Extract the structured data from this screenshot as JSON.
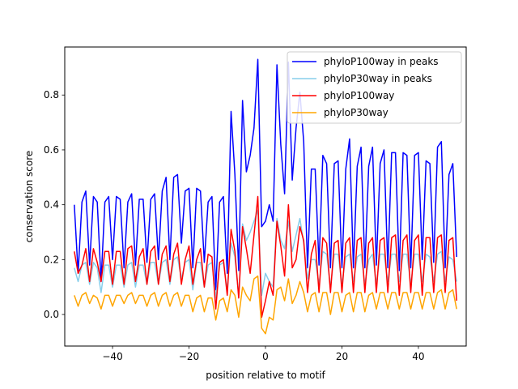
{
  "chart_data": {
    "type": "line",
    "title": "",
    "xlabel": "position relative to motif",
    "ylabel": "conservation score",
    "xlim": [
      -52.5,
      52.5
    ],
    "ylim": [
      -0.115,
      0.975
    ],
    "xticks": [
      -40,
      -20,
      0,
      20,
      40
    ],
    "yticks": [
      0.0,
      0.2,
      0.4,
      0.6,
      0.8
    ],
    "xtick_labels": [
      "−40",
      "−20",
      "0",
      "20",
      "40"
    ],
    "ytick_labels": [
      "0.0",
      "0.2",
      "0.4",
      "0.6",
      "0.8"
    ],
    "grid": false,
    "legend_position": "top-right",
    "x": [
      -50,
      -49,
      -48,
      -47,
      -46,
      -45,
      -44,
      -43,
      -42,
      -41,
      -40,
      -39,
      -38,
      -37,
      -36,
      -35,
      -34,
      -33,
      -32,
      -31,
      -30,
      -29,
      -28,
      -27,
      -26,
      -25,
      -24,
      -23,
      -22,
      -21,
      -20,
      -19,
      -18,
      -17,
      -16,
      -15,
      -14,
      -13,
      -12,
      -11,
      -10,
      -9,
      -8,
      -7,
      -6,
      -5,
      -4,
      -3,
      -2,
      -1,
      0,
      1,
      2,
      3,
      4,
      5,
      6,
      7,
      8,
      9,
      10,
      11,
      12,
      13,
      14,
      15,
      16,
      17,
      18,
      19,
      20,
      21,
      22,
      23,
      24,
      25,
      26,
      27,
      28,
      29,
      30,
      31,
      32,
      33,
      34,
      35,
      36,
      37,
      38,
      39,
      40,
      41,
      42,
      43,
      44,
      45,
      46,
      47,
      48,
      49,
      50
    ],
    "series": [
      {
        "name": "phyloP100way in peaks",
        "color": "#0000ff",
        "values": [
          0.4,
          0.15,
          0.41,
          0.45,
          0.18,
          0.43,
          0.41,
          0.12,
          0.41,
          0.43,
          0.2,
          0.43,
          0.42,
          0.17,
          0.41,
          0.44,
          0.18,
          0.42,
          0.42,
          0.19,
          0.42,
          0.44,
          0.2,
          0.45,
          0.5,
          0.2,
          0.5,
          0.51,
          0.26,
          0.45,
          0.46,
          0.17,
          0.46,
          0.45,
          0.19,
          0.41,
          0.43,
          0.09,
          0.41,
          0.43,
          0.15,
          0.74,
          0.51,
          0.16,
          0.78,
          0.52,
          0.58,
          0.68,
          0.93,
          0.32,
          0.34,
          0.4,
          0.34,
          0.91,
          0.62,
          0.44,
          0.92,
          0.49,
          0.68,
          0.81,
          0.63,
          0.17,
          0.53,
          0.53,
          0.18,
          0.58,
          0.55,
          0.17,
          0.55,
          0.56,
          0.17,
          0.53,
          0.64,
          0.17,
          0.54,
          0.61,
          0.17,
          0.54,
          0.61,
          0.18,
          0.55,
          0.6,
          0.17,
          0.59,
          0.59,
          0.16,
          0.59,
          0.58,
          0.17,
          0.58,
          0.59,
          0.2,
          0.56,
          0.55,
          0.19,
          0.61,
          0.63,
          0.17,
          0.51,
          0.55,
          0.21
        ]
      },
      {
        "name": "phyloP30way in peaks",
        "color": "#87ceeb",
        "values": [
          0.17,
          0.12,
          0.18,
          0.19,
          0.11,
          0.19,
          0.17,
          0.08,
          0.18,
          0.18,
          0.1,
          0.18,
          0.18,
          0.1,
          0.18,
          0.19,
          0.1,
          0.18,
          0.18,
          0.11,
          0.19,
          0.19,
          0.11,
          0.19,
          0.2,
          0.11,
          0.2,
          0.21,
          0.13,
          0.19,
          0.2,
          0.09,
          0.19,
          0.19,
          0.1,
          0.18,
          0.19,
          0.06,
          0.18,
          0.19,
          0.09,
          0.26,
          0.21,
          0.07,
          0.33,
          0.27,
          0.3,
          0.34,
          0.38,
          0.07,
          0.15,
          0.12,
          0.1,
          0.35,
          0.27,
          0.24,
          0.34,
          0.23,
          0.29,
          0.35,
          0.26,
          0.13,
          0.2,
          0.2,
          0.11,
          0.23,
          0.22,
          0.1,
          0.22,
          0.22,
          0.11,
          0.21,
          0.22,
          0.12,
          0.21,
          0.22,
          0.11,
          0.2,
          0.22,
          0.11,
          0.22,
          0.22,
          0.12,
          0.22,
          0.22,
          0.12,
          0.22,
          0.22,
          0.11,
          0.22,
          0.22,
          0.12,
          0.22,
          0.21,
          0.12,
          0.22,
          0.23,
          0.12,
          0.21,
          0.2,
          0.12
        ]
      },
      {
        "name": "phyloP100way",
        "color": "#ff0000",
        "values": [
          0.23,
          0.15,
          0.18,
          0.24,
          0.12,
          0.24,
          0.19,
          0.12,
          0.23,
          0.23,
          0.11,
          0.23,
          0.23,
          0.11,
          0.24,
          0.25,
          0.12,
          0.21,
          0.24,
          0.11,
          0.23,
          0.25,
          0.11,
          0.22,
          0.25,
          0.12,
          0.22,
          0.26,
          0.11,
          0.2,
          0.25,
          0.11,
          0.2,
          0.24,
          0.1,
          0.22,
          0.21,
          0.02,
          0.19,
          0.2,
          0.07,
          0.31,
          0.23,
          0.06,
          0.32,
          0.24,
          0.15,
          0.29,
          0.43,
          -0.01,
          0.05,
          0.12,
          0.07,
          0.34,
          0.25,
          0.14,
          0.4,
          0.17,
          0.2,
          0.32,
          0.27,
          0.08,
          0.22,
          0.27,
          0.08,
          0.28,
          0.26,
          0.08,
          0.26,
          0.27,
          0.08,
          0.26,
          0.28,
          0.08,
          0.27,
          0.28,
          0.08,
          0.26,
          0.28,
          0.08,
          0.27,
          0.28,
          0.08,
          0.28,
          0.29,
          0.07,
          0.27,
          0.29,
          0.08,
          0.27,
          0.29,
          0.07,
          0.28,
          0.28,
          0.08,
          0.28,
          0.29,
          0.08,
          0.27,
          0.28,
          0.05
        ]
      },
      {
        "name": "phyloP30way",
        "color": "#ffa500",
        "values": [
          0.07,
          0.03,
          0.07,
          0.08,
          0.04,
          0.07,
          0.06,
          0.02,
          0.07,
          0.07,
          0.03,
          0.07,
          0.07,
          0.04,
          0.07,
          0.08,
          0.04,
          0.07,
          0.07,
          0.03,
          0.07,
          0.08,
          0.03,
          0.07,
          0.08,
          0.03,
          0.07,
          0.08,
          0.03,
          0.07,
          0.07,
          0.01,
          0.06,
          0.07,
          0.01,
          0.06,
          0.06,
          -0.02,
          0.05,
          0.06,
          0.01,
          0.09,
          0.07,
          -0.01,
          0.1,
          0.07,
          0.05,
          0.13,
          0.14,
          -0.05,
          -0.07,
          -0.01,
          -0.02,
          0.09,
          0.1,
          0.05,
          0.13,
          0.04,
          0.07,
          0.12,
          0.08,
          0.01,
          0.07,
          0.08,
          0.01,
          0.08,
          0.08,
          0.0,
          0.08,
          0.08,
          0.01,
          0.07,
          0.08,
          0.01,
          0.08,
          0.08,
          0.01,
          0.07,
          0.08,
          0.02,
          0.08,
          0.08,
          0.02,
          0.08,
          0.08,
          0.02,
          0.08,
          0.08,
          0.02,
          0.08,
          0.08,
          0.02,
          0.08,
          0.08,
          0.02,
          0.08,
          0.09,
          0.02,
          0.08,
          0.09,
          0.02
        ]
      }
    ]
  }
}
